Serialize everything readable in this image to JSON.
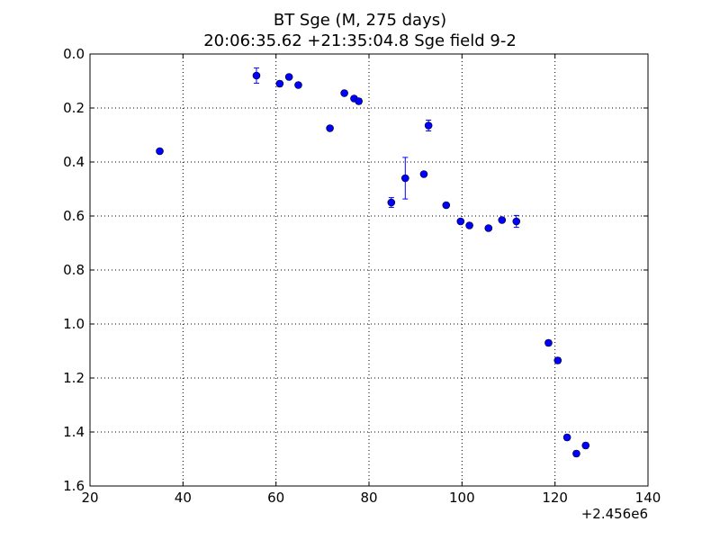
{
  "chart_data": {
    "type": "scatter",
    "title": "BT Sge (M, 275 days)",
    "subtitle": "20:06:35.62 +21:35:04.8 Sge field 9-2",
    "xlabel": "",
    "ylabel": "",
    "x_offset_label": "+2.456e6",
    "xlim": [
      20,
      140
    ],
    "ylim": [
      0.0,
      1.6
    ],
    "y_inverted": true,
    "grid": true,
    "xticks": [
      "20",
      "40",
      "60",
      "80",
      "100",
      "120",
      "140"
    ],
    "yticks": [
      "0.0",
      "0.2",
      "0.4",
      "0.6",
      "0.8",
      "1.0",
      "1.2",
      "1.4",
      "1.6"
    ],
    "marker_color": "#0000ff",
    "series": [
      {
        "points": [
          {
            "x": 35.0,
            "y": 0.36,
            "err": 0.0
          },
          {
            "x": 55.8,
            "y": 0.08,
            "err": 0.028
          },
          {
            "x": 60.8,
            "y": 0.11,
            "err": 0.01
          },
          {
            "x": 62.8,
            "y": 0.085,
            "err": 0.008
          },
          {
            "x": 64.8,
            "y": 0.115,
            "err": 0.008
          },
          {
            "x": 71.6,
            "y": 0.275,
            "err": 0.008
          },
          {
            "x": 74.7,
            "y": 0.145,
            "err": 0.008
          },
          {
            "x": 76.8,
            "y": 0.165,
            "err": 0.008
          },
          {
            "x": 77.8,
            "y": 0.175,
            "err": 0.01
          },
          {
            "x": 84.8,
            "y": 0.55,
            "err": 0.018
          },
          {
            "x": 87.8,
            "y": 0.46,
            "err": 0.077
          },
          {
            "x": 91.8,
            "y": 0.445,
            "err": 0.008
          },
          {
            "x": 92.8,
            "y": 0.265,
            "err": 0.02
          },
          {
            "x": 96.6,
            "y": 0.56,
            "err": 0.008
          },
          {
            "x": 99.7,
            "y": 0.62,
            "err": 0.008
          },
          {
            "x": 101.6,
            "y": 0.635,
            "err": 0.008
          },
          {
            "x": 105.7,
            "y": 0.645,
            "err": 0.008
          },
          {
            "x": 108.6,
            "y": 0.615,
            "err": 0.008
          },
          {
            "x": 111.7,
            "y": 0.62,
            "err": 0.022
          },
          {
            "x": 118.6,
            "y": 1.07,
            "err": 0.01
          },
          {
            "x": 120.6,
            "y": 1.135,
            "err": 0.01
          },
          {
            "x": 122.6,
            "y": 1.42,
            "err": 0.01
          },
          {
            "x": 124.6,
            "y": 1.48,
            "err": 0.01
          },
          {
            "x": 126.6,
            "y": 1.45,
            "err": 0.01
          }
        ]
      }
    ]
  }
}
